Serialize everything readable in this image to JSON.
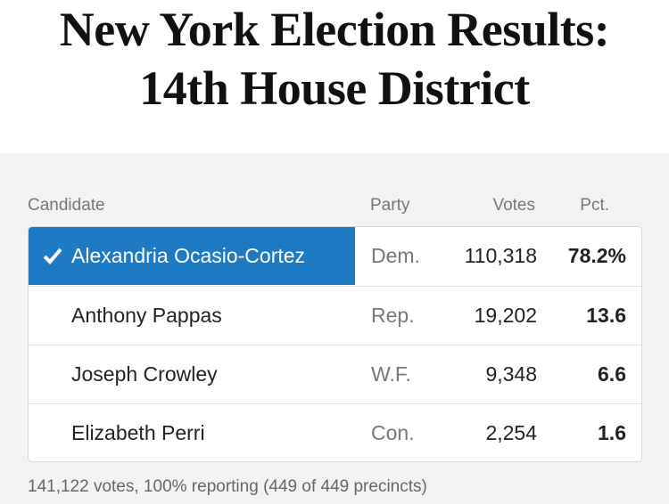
{
  "header": {
    "title": [
      "New York Election Results:",
      "14th House District"
    ]
  },
  "table": {
    "columns": [
      "Candidate",
      "Party",
      "Votes",
      "Pct."
    ],
    "rows": [
      [
        "Alexandria Ocasio-Cortez",
        "Dem.",
        "110,318",
        "78.2%"
      ],
      [
        "Anthony Pappas",
        "Rep.",
        "19,202",
        "13.6"
      ],
      [
        "Joseph Crowley",
        "W.F.",
        "9,348",
        "6.6"
      ],
      [
        "Elizabeth Perri",
        "Con.",
        "2,254",
        "1.6"
      ]
    ]
  },
  "footer": "141,122 votes, 100% reporting (449 of 449 precincts)"
}
